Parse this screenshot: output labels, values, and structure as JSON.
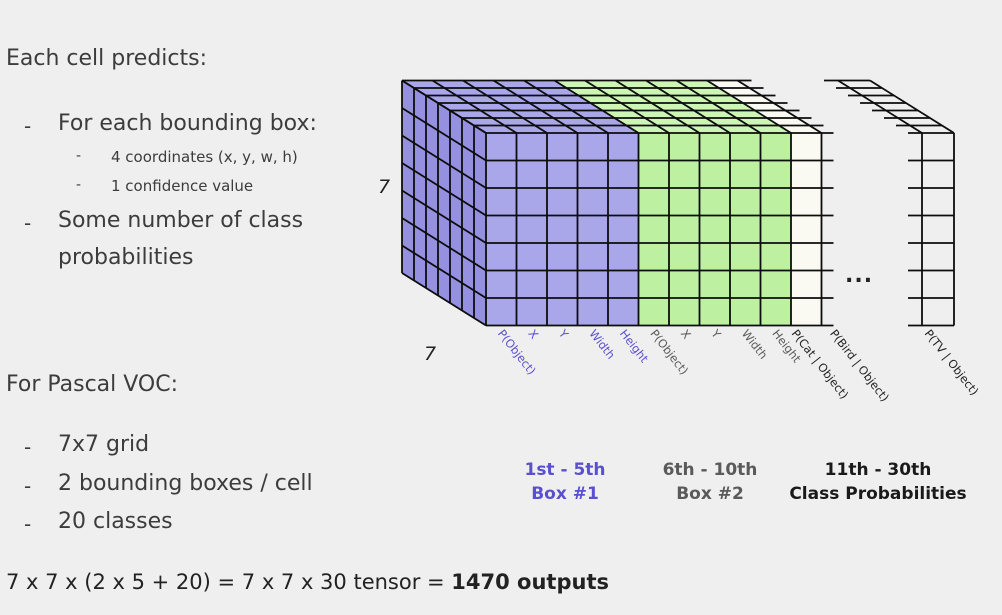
{
  "left_panel": {
    "heading": "Each cell predicts:",
    "bullet1": "For each bounding box:",
    "sub1": "4 coordinates (x, y, w, h)",
    "sub2": "1 confidence value",
    "bullet2_line1": "Some number of class",
    "bullet2_line2": "probabilities",
    "pascal_heading": "For Pascal VOC:",
    "pascal_items": [
      "7x7 grid",
      "2 bounding boxes / cell",
      "20 classes"
    ],
    "dash": "-"
  },
  "formula": {
    "text": "7 x 7 x (2 x 5 + 20) = 7 x 7 x 30 tensor = ",
    "bold": "1470 outputs"
  },
  "diagram": {
    "height_label": "7",
    "depth_label": "7",
    "ellipsis": "...",
    "channel_labels": [
      "P(Object)",
      "X",
      "Y",
      "Width",
      "Height",
      "P(Object)",
      "X",
      "Y",
      "Width",
      "Height",
      "P(Cat | Object)",
      "P(Bird | Object)",
      "P(TV | Object)"
    ],
    "groups": [
      {
        "line1": "1st - 5th",
        "line2": "Box #1",
        "color": "#5a4fd0"
      },
      {
        "line1": "6th - 10th",
        "line2": "Box #2",
        "color": "#5a5a5a"
      },
      {
        "line1": "11th - 30th",
        "line2": "Class Probabilities",
        "color": "#1a1a1a"
      }
    ]
  },
  "colors": {
    "box1_fill": "#a9a6ea",
    "box1_side": "#9690e0",
    "box2_fill": "#bdf0a0",
    "box2_top": "#cdf5b4",
    "class_fill": "#fafaf2",
    "grid_line": "#0d0d0d",
    "box1_text": "#5a4fd0",
    "box2_text": "#5a5a5a",
    "class_text": "#222222"
  }
}
